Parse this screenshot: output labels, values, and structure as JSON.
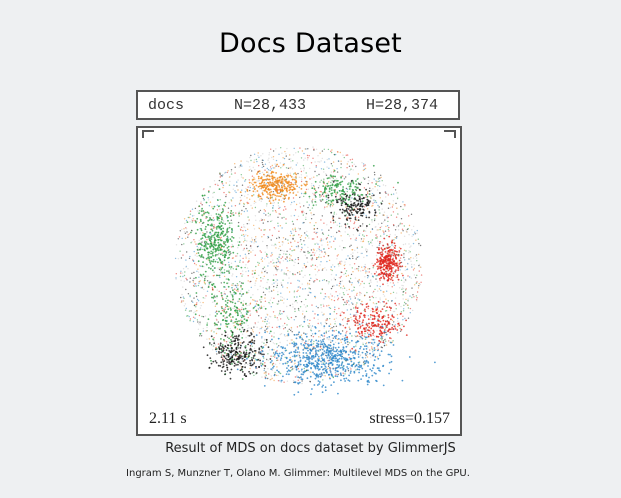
{
  "slide": {
    "title": "Docs Dataset",
    "caption": "Result of MDS on docs dataset by GlimmerJS",
    "citation": "Ingram S, Munzner T, Olano M. Glimmer: Multilevel MDS on the GPU."
  },
  "figure": {
    "dataset_name": "docs",
    "n_label": "N=28,433",
    "h_label": "H=28,374",
    "time_label": "2.11 s",
    "stress_label": "stress=0.157",
    "plot": {
      "type": "scatter",
      "colors": {
        "orange": "#f08a1c",
        "green": "#2e9e44",
        "black": "#111111",
        "red": "#e0261d",
        "blue": "#2b86c9",
        "background_point": "#c8c8c8"
      }
    }
  }
}
